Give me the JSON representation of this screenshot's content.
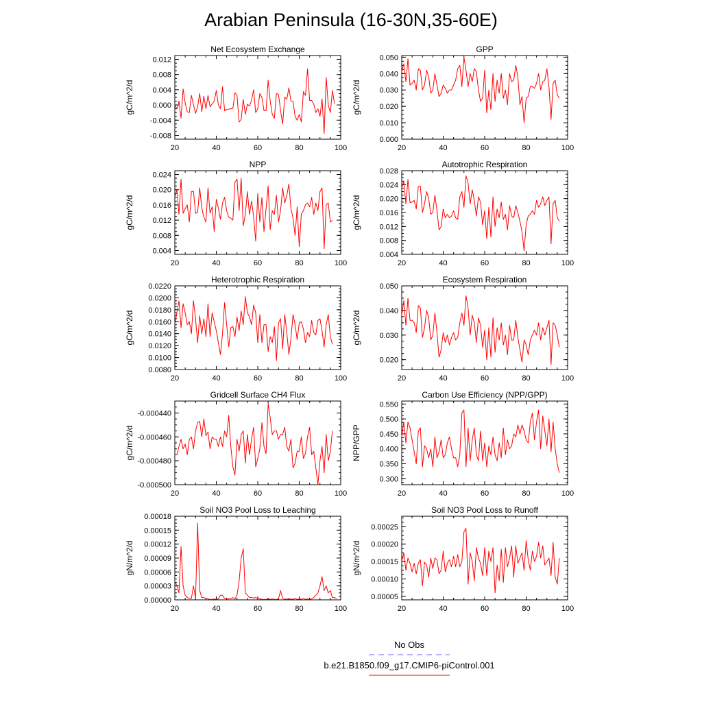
{
  "title": "Arabian Peninsula (16-30N,35-60E)",
  "legend": {
    "items": [
      {
        "label": "No Obs",
        "color": "#6a6aff",
        "style": "dashed"
      },
      {
        "label": "b.e21.B1850.f09_g17.CMIP6-piControl.001",
        "color": "#ff0000",
        "style": "solid"
      }
    ]
  },
  "chart_data": [
    {
      "type": "line",
      "title": "Net Ecosystem Exchange",
      "ylabel": "gC/m^2/d",
      "xlim": [
        20,
        100
      ],
      "ylim": [
        -0.009,
        0.013
      ],
      "xticks": [
        "20",
        "40",
        "60",
        "80",
        "100"
      ],
      "yticks": [
        -0.008,
        -0.004,
        0.0,
        0.004,
        0.008,
        0.012
      ],
      "ytick_labels": [
        "-0.008",
        "-0.004",
        "0.000",
        "0.004",
        "0.008",
        "0.012"
      ],
      "x_start": 20,
      "values": [
        0.0,
        -0.001,
        0.001,
        -0.0035,
        0.0042,
        0.0005,
        -0.0018,
        -0.002,
        0.0025,
        0.0,
        -0.0022,
        -0.0005,
        0.003,
        -0.0018,
        0.0023,
        -0.001,
        0.0025,
        -0.0005,
        0.0003,
        0.001,
        0.0038,
        0.0,
        -0.001,
        0.0048,
        -0.0015,
        -0.0012,
        -0.0011,
        -0.001,
        -0.0009,
        0.0032,
        0.0025,
        -0.0045,
        -0.0038,
        0.0015,
        -0.0025,
        0.0002,
        -0.0003,
        0.0012,
        0.004,
        -0.002,
        -0.001,
        0.003,
        0.002,
        -0.0015,
        -0.0015,
        0.0065,
        0.001,
        -0.0025,
        -0.0035,
        0.003,
        0.0028,
        -0.0015,
        -0.005,
        0.002,
        0.0015,
        0.0045,
        0.001,
        0.001,
        -0.003,
        -0.004,
        -0.0025,
        -0.0045,
        0.0035,
        0.0025,
        0.0095,
        0.0012,
        0.0012,
        0.0002,
        -0.002,
        -0.001,
        -0.003,
        0.0016,
        -0.0075,
        0.0072,
        0.0,
        -0.002,
        0.0038,
        0.0003
      ],
      "color": "#ff0000"
    },
    {
      "type": "line",
      "title": "GPP",
      "ylabel": "gC/m^2/d",
      "xlim": [
        20,
        100
      ],
      "ylim": [
        0.0,
        0.051
      ],
      "xticks": [
        "20",
        "40",
        "60",
        "80",
        "100"
      ],
      "yticks": [
        0.0,
        0.01,
        0.02,
        0.03,
        0.04,
        0.05
      ],
      "ytick_labels": [
        "0.000",
        "0.010",
        "0.020",
        "0.030",
        "0.040",
        "0.050"
      ],
      "x_start": 20,
      "values": [
        0.041,
        0.046,
        0.035,
        0.049,
        0.033,
        0.034,
        0.036,
        0.03,
        0.043,
        0.042,
        0.03,
        0.033,
        0.042,
        0.038,
        0.028,
        0.03,
        0.04,
        0.033,
        0.026,
        0.028,
        0.033,
        0.031,
        0.028,
        0.03,
        0.03,
        0.033,
        0.036,
        0.043,
        0.045,
        0.032,
        0.05,
        0.042,
        0.032,
        0.04,
        0.035,
        0.043,
        0.041,
        0.03,
        0.023,
        0.025,
        0.042,
        0.016,
        0.03,
        0.018,
        0.04,
        0.023,
        0.036,
        0.028,
        0.04,
        0.025,
        0.03,
        0.021,
        0.04,
        0.035,
        0.036,
        0.045,
        0.038,
        0.021,
        0.026,
        0.01,
        0.025,
        0.026,
        0.032,
        0.032,
        0.031,
        0.034,
        0.04,
        0.03,
        0.035,
        0.036,
        0.043,
        0.032,
        0.012,
        0.034,
        0.036,
        0.027,
        0.025
      ],
      "color": "#ff0000"
    },
    {
      "type": "line",
      "title": "NPP",
      "ylabel": "gC/m^2/d",
      "xlim": [
        20,
        100
      ],
      "ylim": [
        0.003,
        0.025
      ],
      "xticks": [
        "20",
        "40",
        "60",
        "80",
        "100"
      ],
      "yticks": [
        0.004,
        0.008,
        0.012,
        0.016,
        0.02,
        0.024
      ],
      "ytick_labels": [
        "0.004",
        "0.008",
        "0.012",
        "0.016",
        "0.020",
        "0.024"
      ],
      "x_start": 20,
      "values": [
        0.018,
        0.02,
        0.0135,
        0.0228,
        0.0138,
        0.015,
        0.016,
        0.0115,
        0.0195,
        0.0196,
        0.0138,
        0.014,
        0.0205,
        0.0152,
        0.0128,
        0.0115,
        0.0205,
        0.0138,
        0.0155,
        0.009,
        0.0175,
        0.0152,
        0.0122,
        0.0165,
        0.018,
        0.0145,
        0.0128,
        0.0125,
        0.012,
        0.022,
        0.0228,
        0.0145,
        0.023,
        0.0105,
        0.0135,
        0.0195,
        0.0135,
        0.017,
        0.013,
        0.0065,
        0.019,
        0.0115,
        0.018,
        0.009,
        0.015,
        0.021,
        0.0095,
        0.0145,
        0.0135,
        0.0185,
        0.0115,
        0.0145,
        0.0205,
        0.0165,
        0.0185,
        0.0215,
        0.015,
        0.0125,
        0.008,
        0.0155,
        0.005,
        0.0135,
        0.0145,
        0.016,
        0.0165,
        0.0155,
        0.018,
        0.0135,
        0.0165,
        0.0145,
        0.0195,
        0.0205,
        0.0045,
        0.016,
        0.0165,
        0.0115,
        0.012
      ],
      "color": "#ff0000"
    },
    {
      "type": "line",
      "title": "Autotrophic Respiration",
      "ylabel": "gC/m^2/d",
      "xlim": [
        20,
        100
      ],
      "ylim": [
        0.004,
        0.028
      ],
      "xticks": [
        "20",
        "40",
        "60",
        "80",
        "100"
      ],
      "yticks": [
        0.004,
        0.008,
        0.012,
        0.016,
        0.02,
        0.024,
        0.028
      ],
      "ytick_labels": [
        "0.004",
        "0.008",
        "0.012",
        "0.016",
        "0.020",
        "0.024",
        "0.028"
      ],
      "x_start": 20,
      "values": [
        0.023,
        0.025,
        0.0185,
        0.0255,
        0.0188,
        0.019,
        0.0195,
        0.017,
        0.0235,
        0.0235,
        0.016,
        0.0185,
        0.022,
        0.02,
        0.0155,
        0.016,
        0.021,
        0.0165,
        0.011,
        0.012,
        0.017,
        0.0145,
        0.0155,
        0.0145,
        0.015,
        0.0165,
        0.0145,
        0.014,
        0.0205,
        0.022,
        0.0175,
        0.0265,
        0.0245,
        0.0185,
        0.0225,
        0.0195,
        0.015,
        0.0205,
        0.019,
        0.0125,
        0.0165,
        0.0085,
        0.0175,
        0.009,
        0.0205,
        0.012,
        0.017,
        0.0145,
        0.019,
        0.014,
        0.0155,
        0.011,
        0.018,
        0.015,
        0.0145,
        0.018,
        0.016,
        0.0135,
        0.0105,
        0.005,
        0.0125,
        0.015,
        0.0155,
        0.0165,
        0.0155,
        0.0195,
        0.0175,
        0.0185,
        0.0205,
        0.018,
        0.0195,
        0.0205,
        0.007,
        0.0185,
        0.0195,
        0.0145,
        0.0135
      ],
      "color": "#ff0000"
    },
    {
      "type": "line",
      "title": "Heterotrophic Respiration",
      "ylabel": "gC/m^2/d",
      "xlim": [
        20,
        100
      ],
      "ylim": [
        0.008,
        0.022
      ],
      "xticks": [
        "20",
        "40",
        "60",
        "80",
        "100"
      ],
      "yticks": [
        0.008,
        0.01,
        0.012,
        0.014,
        0.016,
        0.018,
        0.02,
        0.022
      ],
      "ytick_labels": [
        "0.0080",
        "0.0100",
        "0.0120",
        "0.0140",
        "0.0160",
        "0.0180",
        "0.0200",
        "0.0220"
      ],
      "x_start": 20,
      "values": [
        0.0155,
        0.0175,
        0.0195,
        0.015,
        0.019,
        0.0175,
        0.0155,
        0.016,
        0.014,
        0.0195,
        0.0165,
        0.0125,
        0.017,
        0.014,
        0.0165,
        0.0135,
        0.019,
        0.0135,
        0.0175,
        0.016,
        0.0145,
        0.0125,
        0.0105,
        0.014,
        0.0192,
        0.0155,
        0.0118,
        0.015,
        0.0152,
        0.0135,
        0.0168,
        0.0145,
        0.0178,
        0.0155,
        0.0202,
        0.0175,
        0.0168,
        0.0155,
        0.0188,
        0.0175,
        0.0125,
        0.0172,
        0.0125,
        0.0155,
        0.0155,
        0.011,
        0.0135,
        0.0125,
        0.0152,
        0.0095,
        0.0158,
        0.0165,
        0.0115,
        0.0172,
        0.0142,
        0.0105,
        0.0132,
        0.0172,
        0.0155,
        0.013,
        0.0158,
        0.016,
        0.0148,
        0.0125,
        0.0142,
        0.0135,
        0.0162,
        0.0142,
        0.0138,
        0.0162,
        0.0165,
        0.0145,
        0.0118,
        0.0155,
        0.0172,
        0.0135,
        0.0122
      ],
      "color": "#ff0000"
    },
    {
      "type": "line",
      "title": "Ecosystem Respiration",
      "ylabel": "gC/m^2/d",
      "xlim": [
        20,
        100
      ],
      "ylim": [
        0.016,
        0.05
      ],
      "xticks": [
        "20",
        "40",
        "60",
        "80",
        "100"
      ],
      "yticks": [
        0.02,
        0.03,
        0.04,
        0.05
      ],
      "ytick_labels": [
        "0.020",
        "0.030",
        "0.040",
        "0.050"
      ],
      "x_start": 20,
      "values": [
        0.038,
        0.044,
        0.034,
        0.045,
        0.036,
        0.036,
        0.035,
        0.031,
        0.042,
        0.041,
        0.029,
        0.033,
        0.04,
        0.037,
        0.028,
        0.03,
        0.039,
        0.031,
        0.021,
        0.024,
        0.031,
        0.027,
        0.03,
        0.026,
        0.029,
        0.031,
        0.028,
        0.029,
        0.035,
        0.039,
        0.034,
        0.046,
        0.041,
        0.03,
        0.038,
        0.035,
        0.027,
        0.037,
        0.034,
        0.025,
        0.032,
        0.02,
        0.033,
        0.021,
        0.037,
        0.023,
        0.033,
        0.028,
        0.035,
        0.026,
        0.03,
        0.022,
        0.034,
        0.028,
        0.028,
        0.036,
        0.029,
        0.024,
        0.019,
        0.028,
        0.026,
        0.022,
        0.028,
        0.03,
        0.032,
        0.03,
        0.035,
        0.028,
        0.033,
        0.03,
        0.033,
        0.036,
        0.018,
        0.035,
        0.034,
        0.03,
        0.025
      ],
      "color": "#ff0000"
    },
    {
      "type": "line",
      "title": "Gridcell Surface CH4 Flux",
      "ylabel": "gC/m^2/d",
      "xlim": [
        20,
        100
      ],
      "ylim": [
        -0.0005,
        -0.00043
      ],
      "xticks": [
        "20",
        "40",
        "60",
        "80",
        "100"
      ],
      "yticks": [
        -0.0005,
        -0.00048,
        -0.00046,
        -0.00044
      ],
      "ytick_labels": [
        "-0.000500",
        "-0.000480",
        "-0.000460",
        "-0.000440"
      ],
      "x_start": 20,
      "values": [
        -0.000475,
        -0.000475,
        -0.000468,
        -0.000462,
        -0.00047,
        -0.000466,
        -0.000475,
        -0.000462,
        -0.00046,
        -0.00047,
        -0.000455,
        -0.000448,
        -0.000447,
        -0.00046,
        -0.000445,
        -0.000459,
        -0.000456,
        -0.00047,
        -0.00046,
        -0.000462,
        -0.000462,
        -0.000468,
        -0.00046,
        -0.000468,
        -0.000455,
        -0.00046,
        -0.000442,
        -0.000468,
        -0.000485,
        -0.000492,
        -0.000462,
        -0.000472,
        -0.000458,
        -0.000455,
        -0.000482,
        -0.000458,
        -0.000475,
        -0.000462,
        -0.000452,
        -0.000485,
        -0.000478,
        -0.00047,
        -0.000448,
        -0.000468,
        -0.000474,
        -0.000432,
        -0.000444,
        -0.000458,
        -0.000455,
        -0.000455,
        -0.000462,
        -0.000458,
        -0.000458,
        -0.000452,
        -0.000468,
        -0.000472,
        -0.000462,
        -0.000486,
        -0.000482,
        -0.000472,
        -0.000472,
        -0.00046,
        -0.000478,
        -0.000474,
        -0.00046,
        -0.000452,
        -0.000475,
        -0.000472,
        -0.000486,
        -0.0005,
        -0.00048,
        -0.000468,
        -0.00049,
        -0.000458,
        -0.00048,
        -0.000472,
        -0.000455
      ],
      "color": "#ff0000"
    },
    {
      "type": "line",
      "title": "Carbon Use Efficiency (NPP/GPP)",
      "ylabel": "NPP/GPP",
      "xlim": [
        20,
        100
      ],
      "ylim": [
        0.28,
        0.56
      ],
      "xticks": [
        "20",
        "40",
        "60",
        "80",
        "100"
      ],
      "yticks": [
        0.3,
        0.35,
        0.4,
        0.45,
        0.5,
        0.55
      ],
      "ytick_labels": [
        "0.300",
        "0.350",
        "0.400",
        "0.450",
        "0.500",
        "0.550"
      ],
      "x_start": 20,
      "values": [
        0.44,
        0.49,
        0.42,
        0.49,
        0.47,
        0.43,
        0.39,
        0.35,
        0.46,
        0.47,
        0.34,
        0.41,
        0.4,
        0.37,
        0.4,
        0.34,
        0.44,
        0.37,
        0.39,
        0.43,
        0.37,
        0.38,
        0.42,
        0.44,
        0.4,
        0.37,
        0.37,
        0.34,
        0.38,
        0.52,
        0.53,
        0.34,
        0.47,
        0.36,
        0.43,
        0.47,
        0.38,
        0.36,
        0.46,
        0.36,
        0.42,
        0.34,
        0.41,
        0.38,
        0.44,
        0.38,
        0.36,
        0.42,
        0.37,
        0.47,
        0.38,
        0.43,
        0.4,
        0.41,
        0.45,
        0.44,
        0.48,
        0.45,
        0.48,
        0.46,
        0.43,
        0.42,
        0.49,
        0.52,
        0.43,
        0.49,
        0.53,
        0.4,
        0.51,
        0.46,
        0.41,
        0.5,
        0.39,
        0.49,
        0.4,
        0.35,
        0.32
      ],
      "color": "#ff0000"
    },
    {
      "type": "line",
      "title": "Soil NO3 Pool Loss to Leaching",
      "ylabel": "gN/m^2/d",
      "xlim": [
        20,
        100
      ],
      "ylim": [
        0.0,
        0.00018
      ],
      "xticks": [
        "20",
        "40",
        "60",
        "80",
        "100"
      ],
      "yticks": [
        0.0,
        3e-05,
        6e-05,
        9e-05,
        0.00012,
        0.00015,
        0.00018
      ],
      "ytick_labels": [
        "0.00000",
        "0.00003",
        "0.00006",
        "0.00009",
        "0.00012",
        "0.00015",
        "0.00018"
      ],
      "x_start": 20,
      "values": [
        4e-05,
        3e-05,
        1.5e-05,
        0.000115,
        3e-05,
        1e-05,
        5e-06,
        3e-06,
        3e-06,
        3e-05,
        3e-06,
        0.000165,
        2e-05,
        5e-06,
        5e-06,
        3e-06,
        2e-06,
        1e-06,
        1e-06,
        2e-06,
        1e-06,
        2e-06,
        1e-05,
        1e-05,
        3e-06,
        2e-06,
        2e-06,
        3e-06,
        5e-06,
        2e-06,
        1e-05,
        4e-05,
        9e-05,
        0.00011,
        1.5e-05,
        1e-05,
        5e-06,
        5e-06,
        4e-06,
        5e-06,
        3e-06,
        2e-06,
        1e-06,
        1e-06,
        1e-06,
        2e-06,
        1e-06,
        2e-06,
        1e-06,
        1e-06,
        2e-06,
        2e-05,
        3e-06,
        1e-06,
        2e-06,
        1e-06,
        2e-06,
        1e-06,
        3e-06,
        1e-06,
        2e-06,
        1e-06,
        3e-06,
        1e-06,
        2e-06,
        1e-06,
        2e-06,
        5e-06,
        1e-05,
        1.5e-05,
        3e-05,
        5e-05,
        2e-05,
        3e-05,
        1.5e-05,
        2e-05,
        5e-06,
        5e-06,
        3e-06
      ],
      "color": "#ff0000"
    },
    {
      "type": "line",
      "title": "Soil NO3 Pool Loss to Runoff",
      "ylabel": "gN/m^2/d",
      "xlim": [
        20,
        100
      ],
      "ylim": [
        4e-05,
        0.00028
      ],
      "xticks": [
        "20",
        "40",
        "60",
        "80",
        "100"
      ],
      "yticks": [
        5e-05,
        0.0001,
        0.00015,
        0.0002,
        0.00025
      ],
      "ytick_labels": [
        "0.00005",
        "0.00010",
        "0.00015",
        "0.00020",
        "0.00025"
      ],
      "x_start": 20,
      "values": [
        0.00015,
        0.000175,
        0.000125,
        0.00016,
        0.000145,
        0.00012,
        0.000145,
        0.000115,
        0.000145,
        0.000155,
        8e-05,
        0.000148,
        0.00014,
        0.000105,
        0.00016,
        0.00013,
        0.00016,
        0.000155,
        0.000115,
        0.000125,
        0.00018,
        0.00012,
        0.000145,
        0.000155,
        0.000135,
        0.000165,
        0.000135,
        0.00017,
        0.000135,
        0.00015,
        0.000235,
        0.000245,
        8.5e-05,
        0.000175,
        0.00015,
        9.5e-05,
        0.00019,
        0.00016,
        0.000145,
        0.00011,
        0.00019,
        0.00011,
        0.00018,
        0.00015,
        0.00019,
        6e-05,
        0.00014,
        9.5e-05,
        0.000185,
        9e-05,
        0.00019,
        0.000135,
        0.00016,
        0.000195,
        0.000105,
        0.000195,
        0.000145,
        0.00016,
        0.000175,
        0.000125,
        0.00021,
        0.000155,
        0.000125,
        0.00018,
        0.00015,
        0.000165,
        0.000205,
        0.00016,
        0.000195,
        0.00014,
        0.00015,
        0.00016,
        0.00011,
        0.000205,
        0.000105,
        8.5e-05,
        0.00016
      ],
      "color": "#ff0000"
    }
  ]
}
